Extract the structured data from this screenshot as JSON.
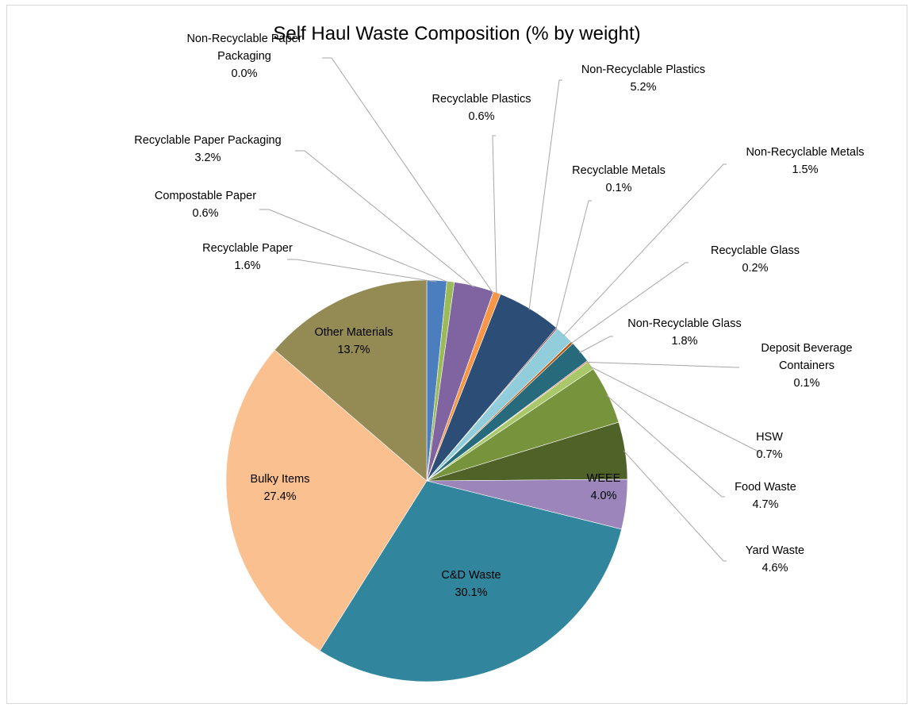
{
  "chart_data": {
    "type": "pie",
    "title": "Self Haul Waste Composition (% by weight)",
    "start_angle_deg": 0,
    "direction": "clockwise",
    "slices": [
      {
        "name": "Recyclable Paper",
        "value": 1.6,
        "value_label": "1.6%",
        "color": "#4a7ebf"
      },
      {
        "name": "Compostable Paper",
        "value": 0.6,
        "value_label": "0.6%",
        "color": "#9bbb59"
      },
      {
        "name": "Recyclable Paper Packaging",
        "value": 3.2,
        "value_label": "3.2%",
        "color": "#8064a2"
      },
      {
        "name": "Non-Recyclable Paper Packaging",
        "value": 0.0,
        "value_label": "0.0%",
        "color": "#4bacc6"
      },
      {
        "name": "Recyclable Plastics",
        "value": 0.6,
        "value_label": "0.6%",
        "color": "#f79646"
      },
      {
        "name": "Non-Recyclable Plastics",
        "value": 5.2,
        "value_label": "5.2%",
        "color": "#2c4d75"
      },
      {
        "name": "Recyclable Metals",
        "value": 0.1,
        "value_label": "0.1%",
        "color": "#772c2a"
      },
      {
        "name": "Non-Recyclable Metals",
        "value": 1.5,
        "value_label": "1.5%",
        "color": "#92cddc"
      },
      {
        "name": "Recyclable Glass",
        "value": 0.2,
        "value_label": "0.2%",
        "color": "#b65708"
      },
      {
        "name": "Non-Recyclable Glass",
        "value": 1.8,
        "value_label": "1.8%",
        "color": "#276a7c"
      },
      {
        "name": "Deposit Beverage Containers",
        "value": 0.1,
        "value_label": "0.1%",
        "color": "#d9695f"
      },
      {
        "name": "HSW",
        "value": 0.7,
        "value_label": "0.7%",
        "color": "#a9c86a"
      },
      {
        "name": "Food Waste",
        "value": 4.7,
        "value_label": "4.7%",
        "color": "#77933c"
      },
      {
        "name": "Yard Waste",
        "value": 4.6,
        "value_label": "4.6%",
        "color": "#4f6228"
      },
      {
        "name": "WEEE",
        "value": 4.0,
        "value_label": "4.0%",
        "color": "#9b85bb"
      },
      {
        "name": "C&D Waste",
        "value": 30.1,
        "value_label": "30.1%",
        "color": "#31859c"
      },
      {
        "name": "Bulky Items",
        "value": 27.4,
        "value_label": "27.4%",
        "color": "#fac090"
      },
      {
        "name": "Other Materials",
        "value": 13.7,
        "value_label": "13.7%",
        "color": "#948a54"
      }
    ],
    "label_lines": {
      "Non-Recyclable Paper Packaging": [
        "Non-Recyclable Paper",
        "Packaging",
        "0.0%"
      ],
      "Deposit Beverage Containers": [
        "Deposit Beverage",
        "Containers",
        "0.1%"
      ]
    }
  }
}
